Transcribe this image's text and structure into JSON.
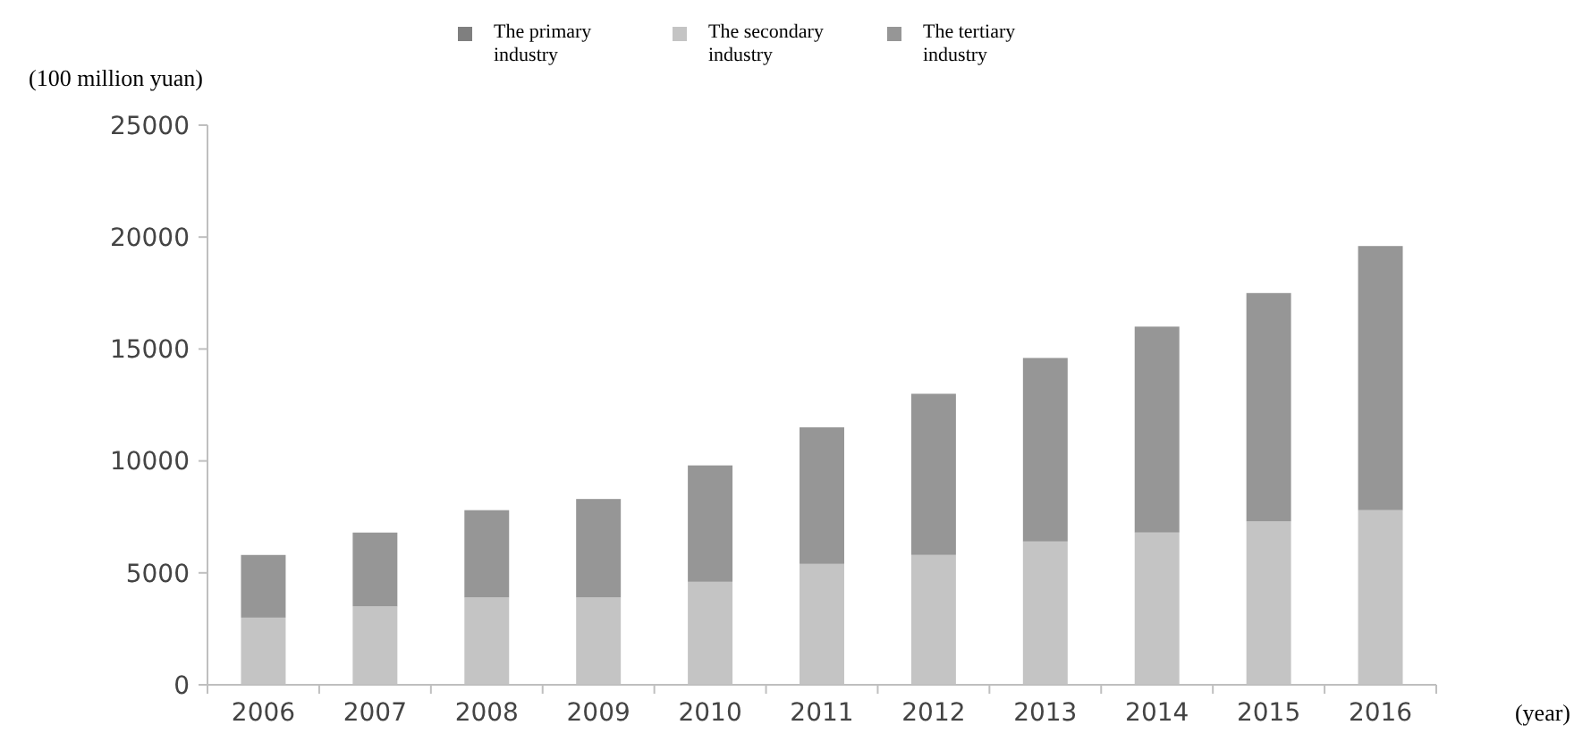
{
  "chart_data": {
    "type": "bar",
    "stacked": true,
    "ylabel": "(100 million yuan)",
    "xlabel": "(year)",
    "categories": [
      "2006",
      "2007",
      "2008",
      "2009",
      "2010",
      "2011",
      "2012",
      "2013",
      "2014",
      "2015",
      "2016"
    ],
    "series": [
      {
        "name": "The primary industry",
        "color": "#7f7f7f",
        "values": [
          null,
          null,
          null,
          null,
          null,
          null,
          null,
          null,
          null,
          null,
          null
        ]
      },
      {
        "name": "The secondary industry",
        "color": "#c4c4c4",
        "values": [
          3000,
          3500,
          3900,
          3900,
          4600,
          5400,
          5800,
          6400,
          6800,
          7300,
          7800
        ]
      },
      {
        "name": "The tertiary industry",
        "color": "#969696",
        "values": [
          2800,
          3300,
          3900,
          4400,
          5200,
          6100,
          7200,
          8200,
          9200,
          10200,
          11800
        ]
      }
    ],
    "ylim": [
      0,
      25000
    ],
    "yticks": [
      0,
      5000,
      10000,
      15000,
      20000,
      25000
    ],
    "grid": false,
    "legend": "top"
  }
}
